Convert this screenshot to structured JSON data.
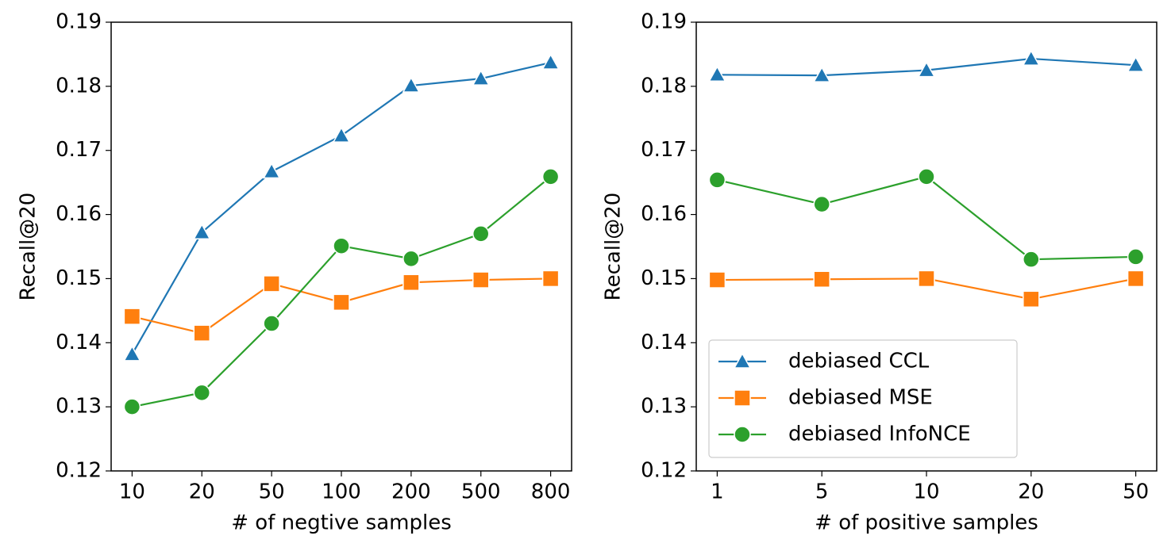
{
  "chart_data": [
    {
      "type": "line",
      "xlabel": "# of negtive samples",
      "ylabel": "Recall@20",
      "categories": [
        "10",
        "20",
        "50",
        "100",
        "200",
        "500",
        "800"
      ],
      "ylim": [
        0.12,
        0.19
      ],
      "yticks": [
        0.12,
        0.13,
        0.14,
        0.15,
        0.16,
        0.17,
        0.18,
        0.19
      ],
      "series": [
        {
          "name": "debiased CCL",
          "color": "#1f77b4",
          "marker": "triangle",
          "values": [
            0.1382,
            0.1572,
            0.1667,
            0.1723,
            0.1801,
            0.1812,
            0.1837
          ]
        },
        {
          "name": "debiased MSE",
          "color": "#ff7f0e",
          "marker": "square",
          "values": [
            0.1441,
            0.1415,
            0.1492,
            0.1463,
            0.1494,
            0.1498,
            0.15
          ]
        },
        {
          "name": "debiased InfoNCE",
          "color": "#2ca02c",
          "marker": "circle",
          "values": [
            0.13,
            0.1322,
            0.143,
            0.1551,
            0.1531,
            0.157,
            0.1659
          ]
        }
      ]
    },
    {
      "type": "line",
      "xlabel": "# of positive samples",
      "ylabel": "Recall@20",
      "categories": [
        "1",
        "5",
        "10",
        "20",
        "50"
      ],
      "ylim": [
        0.12,
        0.19
      ],
      "yticks": [
        0.12,
        0.13,
        0.14,
        0.15,
        0.16,
        0.17,
        0.18,
        0.19
      ],
      "legend": "lower left",
      "series": [
        {
          "name": "debiased CCL",
          "color": "#1f77b4",
          "marker": "triangle",
          "values": [
            0.1818,
            0.1817,
            0.1825,
            0.1843,
            0.1833
          ]
        },
        {
          "name": "debiased MSE",
          "color": "#ff7f0e",
          "marker": "square",
          "values": [
            0.1498,
            0.1499,
            0.15,
            0.1468,
            0.15
          ]
        },
        {
          "name": "debiased InfoNCE",
          "color": "#2ca02c",
          "marker": "circle",
          "values": [
            0.1654,
            0.1616,
            0.1659,
            0.153,
            0.1534
          ]
        }
      ]
    }
  ]
}
